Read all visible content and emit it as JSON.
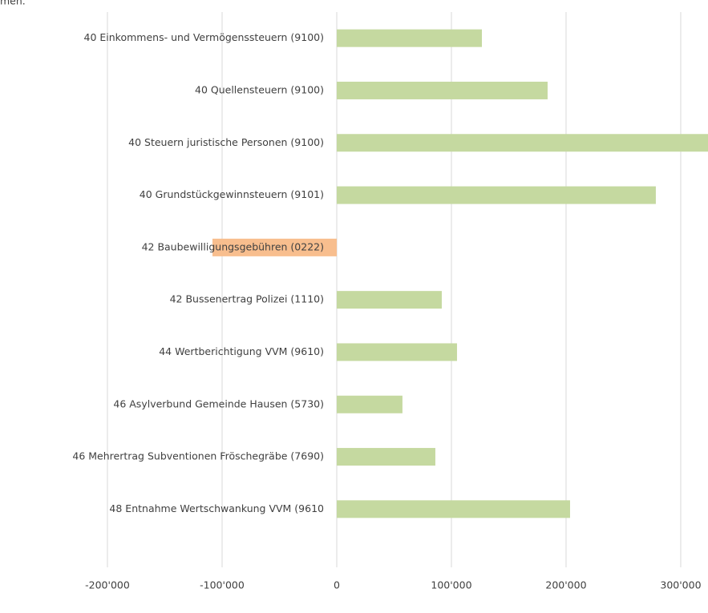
{
  "chart_data": {
    "type": "barh",
    "title": "men.",
    "categories": [
      "40 Einkommens- und Vermögenssteuern (9100)",
      "40 Quellensteuern (9100)",
      "40 Steuern juristische Personen (9100)",
      "40 Grundstückgewinnsteuern (9101)",
      "42 Baubewilligungsgebühren (0222)",
      "42 Bussenertrag Polizei (1110)",
      "44 Wertberichtigung VVM (9610)",
      "46 Asylverbund Gemeinde Hausen (5730)",
      "46 Mehrertrag Subventionen Fröschegräbe (7690)",
      "48 Entnahme Wertschwankung VVM (9610"
    ],
    "values": [
      126600,
      183900,
      330000,
      278300,
      -108400,
      91600,
      104900,
      57300,
      86000,
      203500
    ],
    "color": "#c5d9a0",
    "negative_color": "#f8be8e",
    "xlim": [
      -293700,
      323800
    ],
    "xticks": [
      {
        "value": -200000,
        "label": "-200'000"
      },
      {
        "value": -100000,
        "label": "-100'000"
      },
      0,
      {
        "value": 100000,
        "label": "100'000"
      },
      {
        "value": 200000,
        "label": "200'000"
      },
      {
        "value": 300000,
        "label": "300'000"
      }
    ],
    "grid": true
  }
}
